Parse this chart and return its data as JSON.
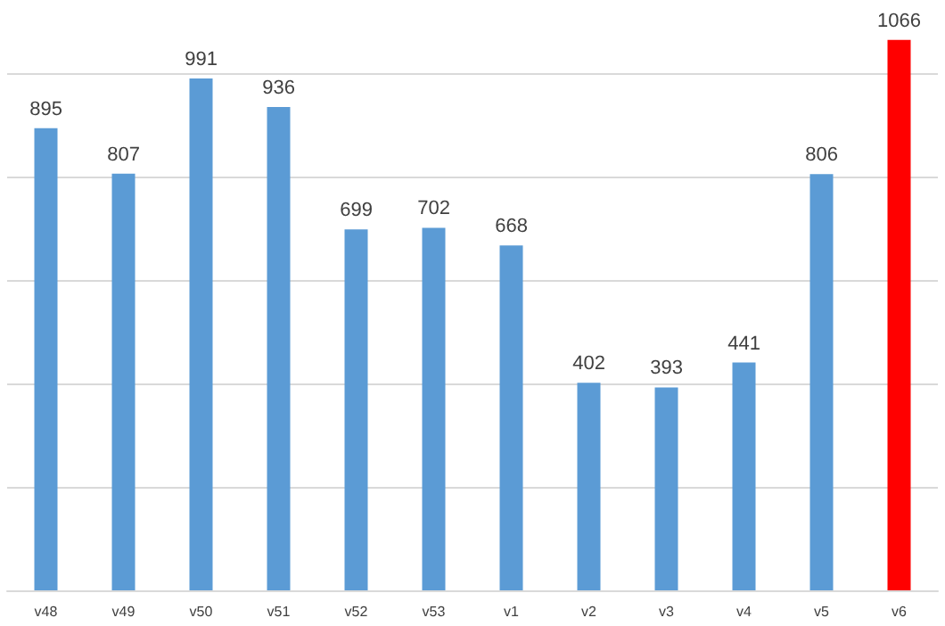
{
  "chart_data": {
    "type": "bar",
    "categories": [
      "v48",
      "v49",
      "v50",
      "v51",
      "v52",
      "v53",
      "v1",
      "v2",
      "v3",
      "v4",
      "v5",
      "v6"
    ],
    "values": [
      895,
      807,
      991,
      936,
      699,
      702,
      668,
      402,
      393,
      441,
      806,
      1066
    ],
    "colors": [
      "#5b9bd5",
      "#5b9bd5",
      "#5b9bd5",
      "#5b9bd5",
      "#5b9bd5",
      "#5b9bd5",
      "#5b9bd5",
      "#5b9bd5",
      "#5b9bd5",
      "#5b9bd5",
      "#5b9bd5",
      "#ff0000"
    ],
    "yticks": [
      0,
      200,
      400,
      600,
      800,
      1000
    ],
    "grid": "y",
    "tick_labels": "x",
    "data_labels": true
  }
}
